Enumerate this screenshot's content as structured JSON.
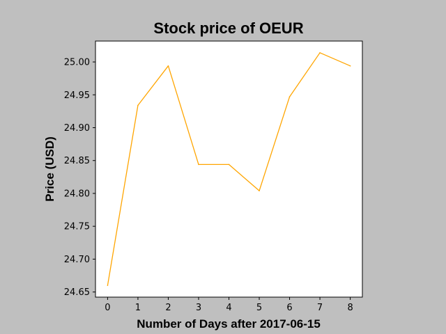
{
  "chart_data": {
    "type": "line",
    "title": "Stock price of OEUR",
    "xlabel": "Number of Days after 2017-06-15",
    "ylabel": "Price (USD)",
    "x": [
      0,
      1,
      2,
      3,
      4,
      5,
      6,
      7,
      8
    ],
    "series": [
      {
        "values": [
          24.66,
          24.934,
          24.994,
          24.844,
          24.844,
          24.804,
          24.947,
          25.014,
          24.994
        ],
        "color": "#ffa500"
      }
    ],
    "xlim": [
      -0.4,
      8.4
    ],
    "ylim": [
      24.6422,
      25.0318
    ],
    "xticks": [
      "0",
      "1",
      "2",
      "3",
      "4",
      "5",
      "6",
      "7",
      "8"
    ],
    "xtick_values": [
      0,
      1,
      2,
      3,
      4,
      5,
      6,
      7,
      8
    ],
    "yticks": [
      "24.65",
      "24.70",
      "24.75",
      "24.80",
      "24.85",
      "24.90",
      "24.95",
      "25.00"
    ],
    "ytick_values": [
      24.65,
      24.7,
      24.75,
      24.8,
      24.85,
      24.9,
      24.95,
      25.0
    ],
    "grid": false,
    "legend": "none",
    "background": "#bfbfbf",
    "plot_background": "#ffffff"
  }
}
